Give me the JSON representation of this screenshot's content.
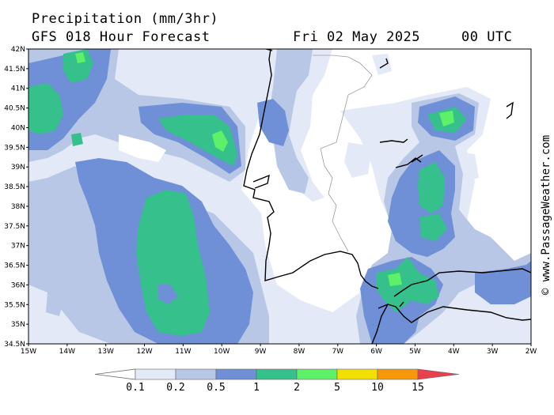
{
  "header": {
    "title": "Precipitation (mm/3hr)",
    "subtitle": "GFS 018 Hour Forecast",
    "date": "Fri 02 May 2025",
    "time": "00 UTC"
  },
  "watermark": "© www.PassageWeather.com",
  "map": {
    "region": "Iberian Peninsula and adjacent Atlantic",
    "lon_range": [
      -15,
      -2
    ],
    "lat_range": [
      34.5,
      42
    ],
    "lat_ticks": [
      "42N",
      "41.5N",
      "41N",
      "40.5N",
      "40N",
      "39.5N",
      "39N",
      "38.5N",
      "38N",
      "37.5N",
      "37N",
      "36.5N",
      "36N",
      "35.5N",
      "35N",
      "34.5N"
    ],
    "lon_ticks": [
      "15W",
      "14W",
      "13W",
      "12W",
      "11W",
      "10W",
      "9W",
      "8W",
      "7W",
      "6W",
      "5W",
      "4W",
      "3W",
      "2W"
    ]
  },
  "colorbar": {
    "labels": [
      "0.1",
      "0.2",
      "0.5",
      "1",
      "2",
      "5",
      "10",
      "15"
    ],
    "colors": [
      "#e3e9f6",
      "#b8c7e6",
      "#6f8fd6",
      "#35c08c",
      "#5ef068",
      "#f2e000",
      "#f7980a",
      "#e8404c"
    ],
    "low_color": "#ffffff"
  }
}
